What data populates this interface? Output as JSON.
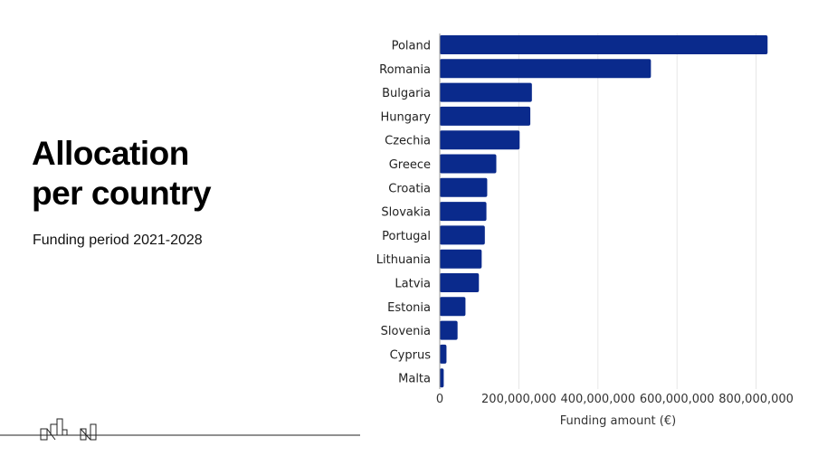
{
  "slide": {
    "title_line1": "Allocation",
    "title_line2": "per country",
    "subtitle": "Funding period 2021-2028"
  },
  "chart_data": {
    "type": "bar",
    "orientation": "horizontal",
    "categories": [
      "Poland",
      "Romania",
      "Bulgaria",
      "Hungary",
      "Czechia",
      "Greece",
      "Croatia",
      "Slovakia",
      "Portugal",
      "Lithuania",
      "Latvia",
      "Estonia",
      "Slovenia",
      "Cyprus",
      "Malta"
    ],
    "values": [
      829000000,
      534000000,
      233000000,
      229000000,
      202000000,
      143000000,
      120000000,
      118000000,
      114000000,
      106000000,
      99000000,
      65000000,
      45000000,
      17000000,
      10000000
    ],
    "xlabel": "Funding amount (€)",
    "ylabel": "",
    "xlim": [
      0,
      880000000
    ],
    "xticks": [
      0,
      200000000,
      400000000,
      600000000,
      800000000
    ],
    "xtick_labels": [
      "0",
      "200,000,000",
      "400,000,000",
      "600,000,000",
      "800,000,000"
    ],
    "grid": "vertical",
    "bar_color": "#0a2a8c"
  }
}
